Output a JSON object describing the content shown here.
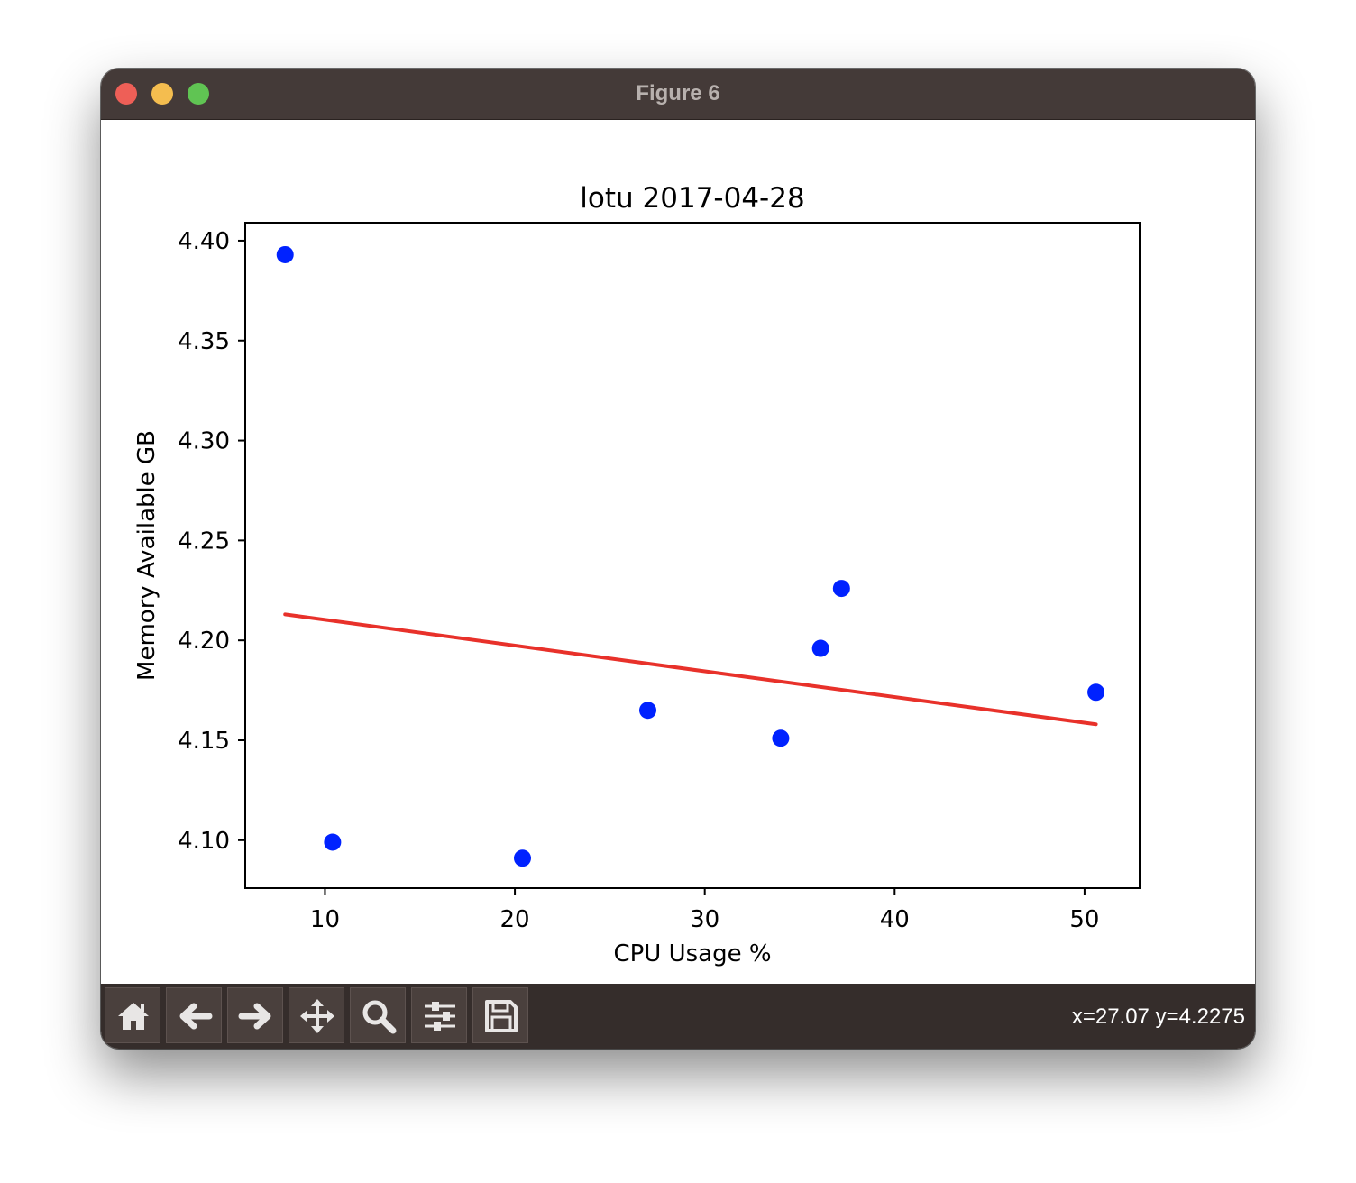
{
  "window": {
    "title": "Figure 6"
  },
  "toolbar": {
    "buttons": [
      {
        "name": "home-button",
        "icon": "home-icon"
      },
      {
        "name": "back-button",
        "icon": "arrow-left-icon"
      },
      {
        "name": "forward-button",
        "icon": "arrow-right-icon"
      },
      {
        "name": "pan-button",
        "icon": "move-icon"
      },
      {
        "name": "zoom-button",
        "icon": "magnifier-icon"
      },
      {
        "name": "configure-subplots-button",
        "icon": "sliders-icon"
      },
      {
        "name": "save-button",
        "icon": "floppy-disk-icon"
      }
    ],
    "coords_text": "x=27.07 y=4.2275"
  },
  "chart_data": {
    "type": "scatter",
    "title": "lotu 2017-04-28",
    "xlabel": "CPU Usage %",
    "ylabel": "Memory Available GB",
    "xlim": [
      5.8,
      52.9
    ],
    "ylim": [
      4.076,
      4.409
    ],
    "xticks": [
      10,
      20,
      30,
      40,
      50
    ],
    "xtick_labels": [
      "10",
      "20",
      "30",
      "40",
      "50"
    ],
    "yticks": [
      4.1,
      4.15,
      4.2,
      4.25,
      4.3,
      4.35,
      4.4
    ],
    "ytick_labels": [
      "4.10",
      "4.15",
      "4.20",
      "4.25",
      "4.30",
      "4.35",
      "4.40"
    ],
    "grid": false,
    "series": [
      {
        "kind": "points",
        "color": "#0022ff",
        "points": [
          {
            "x": 7.9,
            "y": 4.393
          },
          {
            "x": 10.4,
            "y": 4.099
          },
          {
            "x": 20.4,
            "y": 4.091
          },
          {
            "x": 27.0,
            "y": 4.165
          },
          {
            "x": 34.0,
            "y": 4.151
          },
          {
            "x": 36.1,
            "y": 4.196
          },
          {
            "x": 37.2,
            "y": 4.226
          },
          {
            "x": 50.6,
            "y": 4.174
          }
        ]
      },
      {
        "kind": "fit-line",
        "color": "#e8312a",
        "points": [
          {
            "x": 7.9,
            "y": 4.213
          },
          {
            "x": 50.6,
            "y": 4.158
          }
        ]
      }
    ]
  }
}
